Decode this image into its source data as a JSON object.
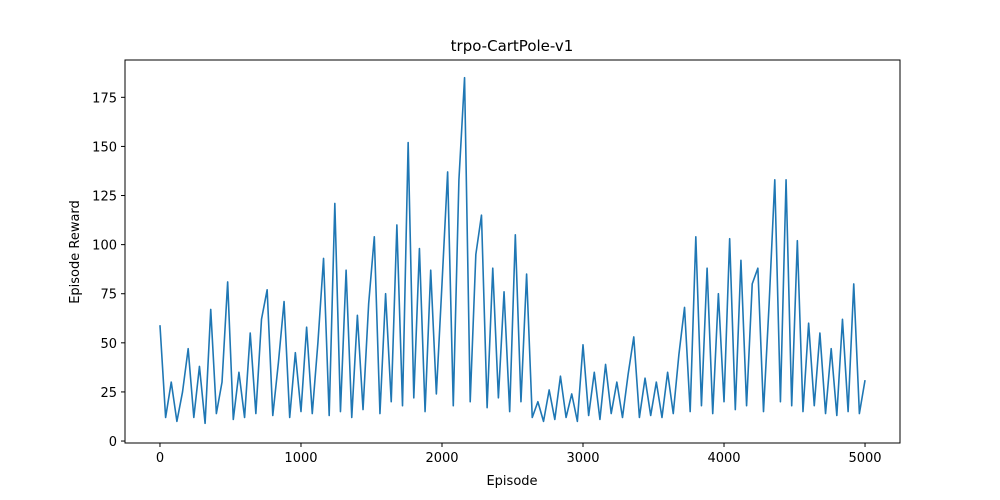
{
  "chart_data": {
    "type": "line",
    "title": "trpo-CartPole-v1",
    "xlabel": "Episode",
    "ylabel": "Episode Reward",
    "x": [
      0,
      40,
      80,
      120,
      160,
      200,
      240,
      280,
      320,
      360,
      400,
      440,
      480,
      520,
      560,
      600,
      640,
      680,
      720,
      760,
      800,
      840,
      880,
      920,
      960,
      1000,
      1040,
      1080,
      1120,
      1160,
      1200,
      1240,
      1280,
      1320,
      1360,
      1400,
      1440,
      1480,
      1520,
      1560,
      1600,
      1640,
      1680,
      1720,
      1760,
      1800,
      1840,
      1880,
      1920,
      1960,
      2000,
      2040,
      2080,
      2120,
      2160,
      2200,
      2240,
      2280,
      2320,
      2360,
      2400,
      2440,
      2480,
      2520,
      2560,
      2600,
      2640,
      2680,
      2720,
      2760,
      2800,
      2840,
      2880,
      2920,
      2960,
      3000,
      3040,
      3080,
      3120,
      3160,
      3200,
      3240,
      3280,
      3320,
      3360,
      3400,
      3440,
      3480,
      3520,
      3560,
      3600,
      3640,
      3680,
      3720,
      3760,
      3800,
      3840,
      3880,
      3920,
      3960,
      4000,
      4040,
      4080,
      4120,
      4160,
      4200,
      4240,
      4280,
      4320,
      4360,
      4400,
      4440,
      4480,
      4520,
      4560,
      4600,
      4640,
      4680,
      4720,
      4760,
      4800,
      4840,
      4880,
      4920,
      4960,
      5000
    ],
    "series": [
      {
        "name": "trpo-CartPole-v1",
        "color": "#1f77b4",
        "values": [
          59,
          12,
          30,
          10,
          25,
          47,
          12,
          38,
          9,
          67,
          14,
          30,
          81,
          11,
          35,
          12,
          55,
          14,
          62,
          77,
          13,
          40,
          71,
          12,
          45,
          15,
          58,
          14,
          50,
          93,
          13,
          121,
          15,
          87,
          12,
          64,
          16,
          70,
          104,
          14,
          75,
          20,
          110,
          18,
          152,
          22,
          98,
          15,
          87,
          24,
          80,
          137,
          18,
          133,
          185,
          20,
          95,
          115,
          17,
          88,
          22,
          76,
          15,
          105,
          20,
          85,
          12,
          20,
          10,
          26,
          11,
          33,
          12,
          24,
          10,
          49,
          13,
          35,
          11,
          39,
          14,
          30,
          12,
          34,
          53,
          12,
          32,
          13,
          30,
          12,
          35,
          14,
          44,
          68,
          15,
          104,
          18,
          88,
          14,
          75,
          20,
          103,
          16,
          92,
          18,
          80,
          88,
          15,
          70,
          133,
          20,
          133,
          18,
          102,
          15,
          60,
          18,
          55,
          14,
          47,
          13,
          62,
          15,
          80,
          14,
          31
        ]
      }
    ],
    "xlim": [
      -248,
      5248
    ],
    "ylim": [
      -1,
      194
    ],
    "xticks": [
      0,
      1000,
      2000,
      3000,
      4000,
      5000
    ],
    "yticks": [
      0,
      25,
      50,
      75,
      100,
      125,
      150,
      175
    ]
  }
}
